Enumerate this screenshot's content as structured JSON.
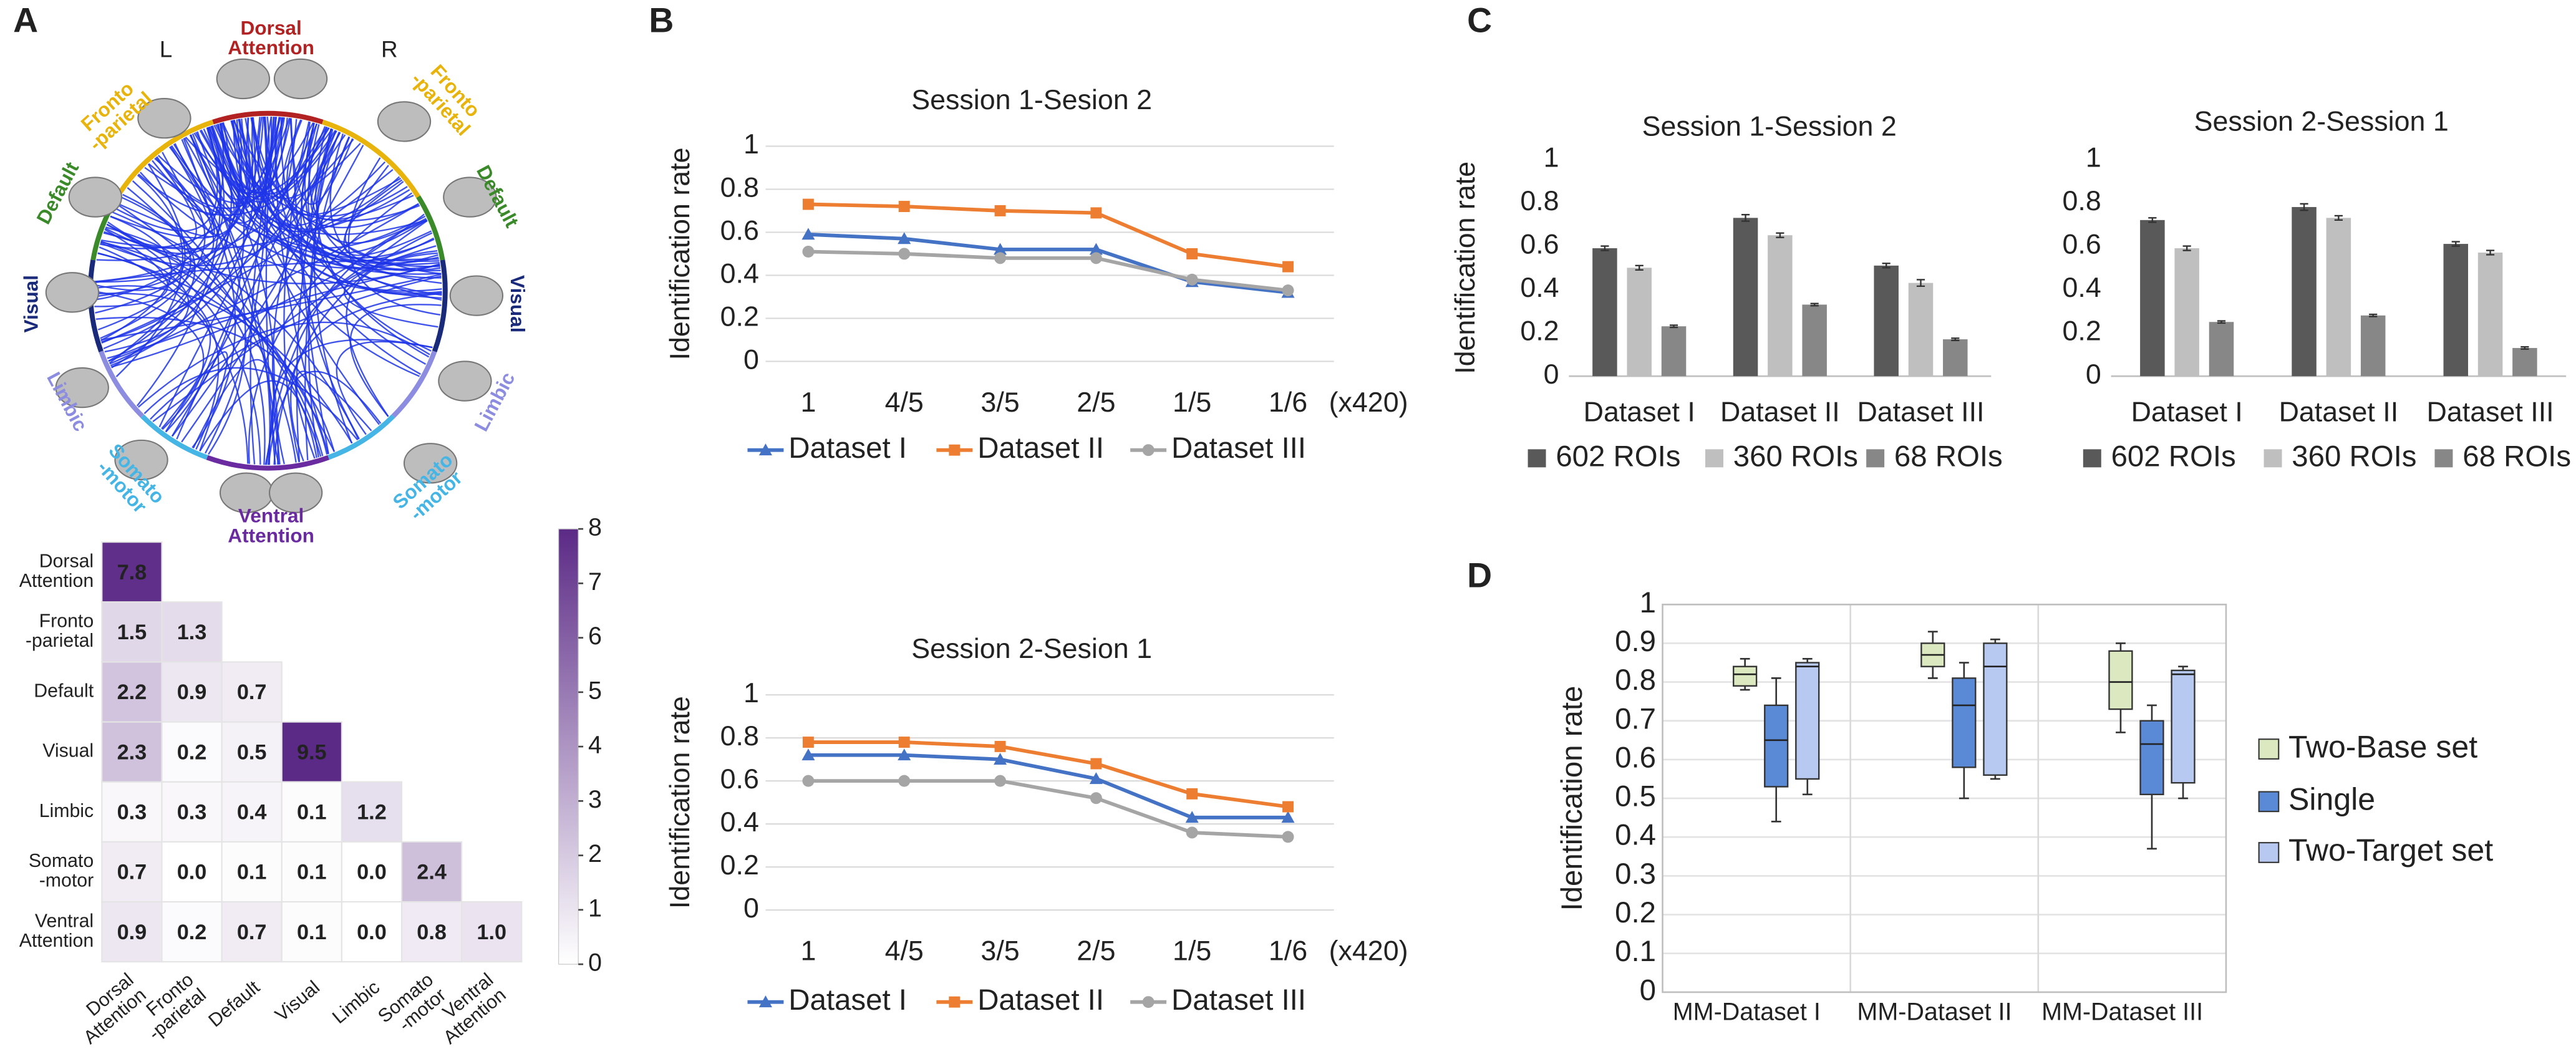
{
  "chart_data": [
    {
      "type": "chord",
      "panel": "A",
      "side_labels": [
        "L",
        "R"
      ],
      "nodes": [
        {
          "label": [
            "Dorsal",
            "Attention"
          ],
          "color": "#b22222"
        },
        {
          "label": [
            "Fronto",
            "-parietal"
          ],
          "color": "#e8b30a"
        },
        {
          "label": [
            "Fronto",
            "-parietal"
          ],
          "color": "#e8b30a"
        },
        {
          "label": [
            "Default"
          ],
          "color": "#3a8a2a"
        },
        {
          "label": [
            "Default"
          ],
          "color": "#3a8a2a"
        },
        {
          "label": [
            "Visual"
          ],
          "color": "#1a2a7a"
        },
        {
          "label": [
            "Visual"
          ],
          "color": "#1a2a7a"
        },
        {
          "label": [
            "Limbic"
          ],
          "color": "#8c8ce0"
        },
        {
          "label": [
            "Limbic"
          ],
          "color": "#8c8ce0"
        },
        {
          "label": [
            "Somato",
            "-motor"
          ],
          "color": "#45b5e5"
        },
        {
          "label": [
            "Somato",
            "-motor"
          ],
          "color": "#45b5e5"
        },
        {
          "label": [
            "Ventral",
            "Attention"
          ],
          "color": "#6a2aa0"
        }
      ]
    },
    {
      "type": "heatmap",
      "labels": [
        [
          "Dorsal",
          "Attention"
        ],
        [
          "Fronto",
          "-parietal"
        ],
        [
          "Default"
        ],
        [
          "Visual"
        ],
        [
          "Limbic"
        ],
        [
          "Somato",
          "-motor"
        ],
        [
          "Ventral",
          "Attention"
        ]
      ],
      "values": [
        [
          7.8
        ],
        [
          1.5,
          1.3
        ],
        [
          2.2,
          0.9,
          0.7
        ],
        [
          2.3,
          0.2,
          0.5,
          9.5
        ],
        [
          0.3,
          0.3,
          0.4,
          0.1,
          1.2
        ],
        [
          0.7,
          0.0,
          0.1,
          0.1,
          0.0,
          2.4
        ],
        [
          0.9,
          0.2,
          0.7,
          0.1,
          0.0,
          0.8,
          1.0
        ]
      ],
      "value_labels": [
        [
          "7.8"
        ],
        [
          "1.5",
          "1.3"
        ],
        [
          "2.2",
          "0.9",
          "0.7"
        ],
        [
          "2.3",
          "0.2",
          "0.5",
          "9.5"
        ],
        [
          "0.3",
          "0.3",
          "0.4",
          "0.1",
          "1.2"
        ],
        [
          "0.7",
          "0.0",
          "0.1",
          "0.1",
          "0.0",
          "2.4"
        ],
        [
          "0.9",
          "0.2",
          "0.7",
          "0.1",
          "0.0",
          "0.8",
          "1.0"
        ]
      ],
      "zlim": [
        0,
        8
      ],
      "zticks": [
        0,
        1,
        2,
        3,
        4,
        5,
        6,
        7,
        8
      ],
      "colors": [
        "#ffffff",
        "#5b2a86"
      ]
    },
    {
      "type": "line",
      "panel": "B",
      "title": "Session 1-Sesion 2",
      "ylabel": "Identification rate",
      "categories": [
        "1",
        "4/5",
        "3/5",
        "2/5",
        "1/5",
        "1/6"
      ],
      "x_note": "(x420)",
      "ylim": [
        0,
        1
      ],
      "yticks": [
        0,
        0.2,
        0.4,
        0.6,
        0.8,
        1
      ],
      "grid": true,
      "series": [
        {
          "name": "Dataset I",
          "color": "#4472c4",
          "marker": "triangle",
          "values": [
            0.59,
            0.57,
            0.52,
            0.52,
            0.37,
            0.32
          ]
        },
        {
          "name": "Dataset II",
          "color": "#ed7d31",
          "marker": "square",
          "values": [
            0.73,
            0.72,
            0.7,
            0.69,
            0.5,
            0.44
          ]
        },
        {
          "name": "Dataset III",
          "color": "#a5a5a5",
          "marker": "circle",
          "values": [
            0.51,
            0.5,
            0.48,
            0.48,
            0.38,
            0.33
          ]
        }
      ]
    },
    {
      "type": "line",
      "title": "Session 2-Sesion 1",
      "ylabel": "Identification rate",
      "categories": [
        "1",
        "4/5",
        "3/5",
        "2/5",
        "1/5",
        "1/6"
      ],
      "x_note": "(x420)",
      "ylim": [
        0,
        1
      ],
      "yticks": [
        0,
        0.2,
        0.4,
        0.6,
        0.8,
        1
      ],
      "grid": true,
      "series": [
        {
          "name": "Dataset I",
          "color": "#4472c4",
          "marker": "triangle",
          "values": [
            0.72,
            0.72,
            0.7,
            0.61,
            0.43,
            0.43
          ]
        },
        {
          "name": "Dataset II",
          "color": "#ed7d31",
          "marker": "square",
          "values": [
            0.78,
            0.78,
            0.76,
            0.68,
            0.54,
            0.48
          ]
        },
        {
          "name": "Dataset III",
          "color": "#a5a5a5",
          "marker": "circle",
          "values": [
            0.6,
            0.6,
            0.6,
            0.52,
            0.36,
            0.34
          ]
        }
      ]
    },
    {
      "type": "bar",
      "panel": "C",
      "title": "Session 1-Session 2",
      "ylabel": "Identification rate",
      "categories": [
        "Dataset I",
        "Dataset II",
        "Dataset III"
      ],
      "ylim": [
        0,
        1
      ],
      "yticks": [
        0,
        0.2,
        0.4,
        0.6,
        0.8,
        1
      ],
      "grid": false,
      "series": [
        {
          "name": "602 ROIs",
          "color": "#595959",
          "values": [
            0.59,
            0.73,
            0.51
          ],
          "errors": [
            0.01,
            0.015,
            0.01
          ]
        },
        {
          "name": "360 ROIs",
          "color": "#bfbfbf",
          "values": [
            0.5,
            0.65,
            0.43
          ],
          "errors": [
            0.01,
            0.01,
            0.015
          ]
        },
        {
          "name": "68 ROIs",
          "color": "#878787",
          "values": [
            0.23,
            0.33,
            0.17
          ],
          "errors": [
            0.005,
            0.005,
            0.005
          ]
        }
      ]
    },
    {
      "type": "bar",
      "title": "Session 2-Session 1",
      "categories": [
        "Dataset I",
        "Dataset II",
        "Dataset III"
      ],
      "ylim": [
        0,
        1
      ],
      "yticks": [
        0,
        0.2,
        0.4,
        0.6,
        0.8,
        1
      ],
      "grid": false,
      "series": [
        {
          "name": "602 ROIs",
          "color": "#595959",
          "values": [
            0.72,
            0.78,
            0.61
          ],
          "errors": [
            0.01,
            0.015,
            0.01
          ]
        },
        {
          "name": "360 ROIs",
          "color": "#bfbfbf",
          "values": [
            0.59,
            0.73,
            0.57
          ],
          "errors": [
            0.01,
            0.01,
            0.01
          ]
        },
        {
          "name": "68 ROIs",
          "color": "#878787",
          "values": [
            0.25,
            0.28,
            0.13
          ],
          "errors": [
            0.005,
            0.005,
            0.005
          ]
        }
      ]
    },
    {
      "type": "box",
      "panel": "D",
      "ylabel": "Identification rate",
      "categories": [
        "MM-Dataset I",
        "MM-Dataset II",
        "MM-Dataset III"
      ],
      "ylim": [
        0,
        1
      ],
      "yticks": [
        0,
        0.1,
        0.2,
        0.3,
        0.4,
        0.5,
        0.6,
        0.7,
        0.8,
        0.9,
        1
      ],
      "grid": true,
      "series": [
        {
          "name": "Two-Base set",
          "color": "#dce9c0",
          "min": [
            0.78,
            0.81,
            0.67
          ],
          "q1": [
            0.79,
            0.84,
            0.73
          ],
          "median": [
            0.82,
            0.87,
            0.8
          ],
          "q3": [
            0.84,
            0.9,
            0.88
          ],
          "max": [
            0.86,
            0.93,
            0.9
          ]
        },
        {
          "name": "Single",
          "color": "#5a8ad6",
          "min": [
            0.44,
            0.5,
            0.37
          ],
          "q1": [
            0.53,
            0.58,
            0.51
          ],
          "median": [
            0.65,
            0.74,
            0.64
          ],
          "q3": [
            0.74,
            0.81,
            0.7
          ],
          "max": [
            0.81,
            0.85,
            0.74
          ]
        },
        {
          "name": "Two-Target set",
          "color": "#b7c9f0",
          "min": [
            0.51,
            0.55,
            0.5
          ],
          "q1": [
            0.55,
            0.56,
            0.54
          ],
          "median": [
            0.84,
            0.84,
            0.82
          ],
          "q3": [
            0.85,
            0.9,
            0.83
          ],
          "max": [
            0.86,
            0.91,
            0.84
          ]
        }
      ]
    }
  ]
}
